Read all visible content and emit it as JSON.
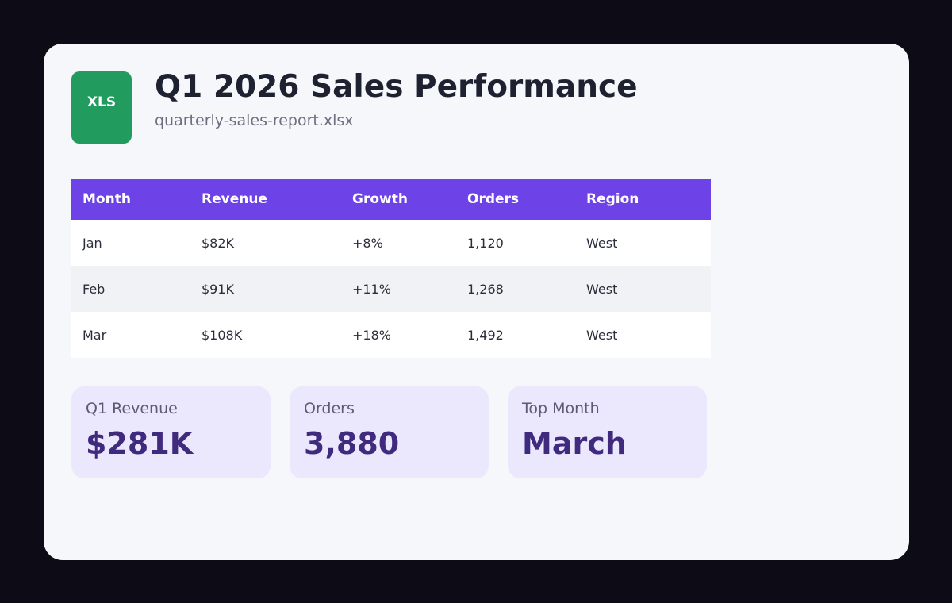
{
  "file": {
    "icon_label": "XLS",
    "title": "Q1 2026 Sales Performance",
    "filename": "quarterly-sales-report.xlsx"
  },
  "table": {
    "headers": [
      "Month",
      "Revenue",
      "Growth",
      "Orders",
      "Region"
    ],
    "rows": [
      [
        "Jan",
        "$82K",
        "+8%",
        "1,120",
        "West"
      ],
      [
        "Feb",
        "$91K",
        "+11%",
        "1,268",
        "West"
      ],
      [
        "Mar",
        "$108K",
        "+18%",
        "1,492",
        "West"
      ]
    ]
  },
  "stats": [
    {
      "label": "Q1 Revenue",
      "value": "$281K"
    },
    {
      "label": "Orders",
      "value": "3,880"
    },
    {
      "label": "Top Month",
      "value": "March"
    }
  ],
  "colors": {
    "background": "#0d0c16",
    "card": "#f6f7fb",
    "file_icon": "#229b5f",
    "table_header": "#6d42e6",
    "stat_card": "#ebe7fd",
    "stat_value": "#3f2a7e"
  }
}
